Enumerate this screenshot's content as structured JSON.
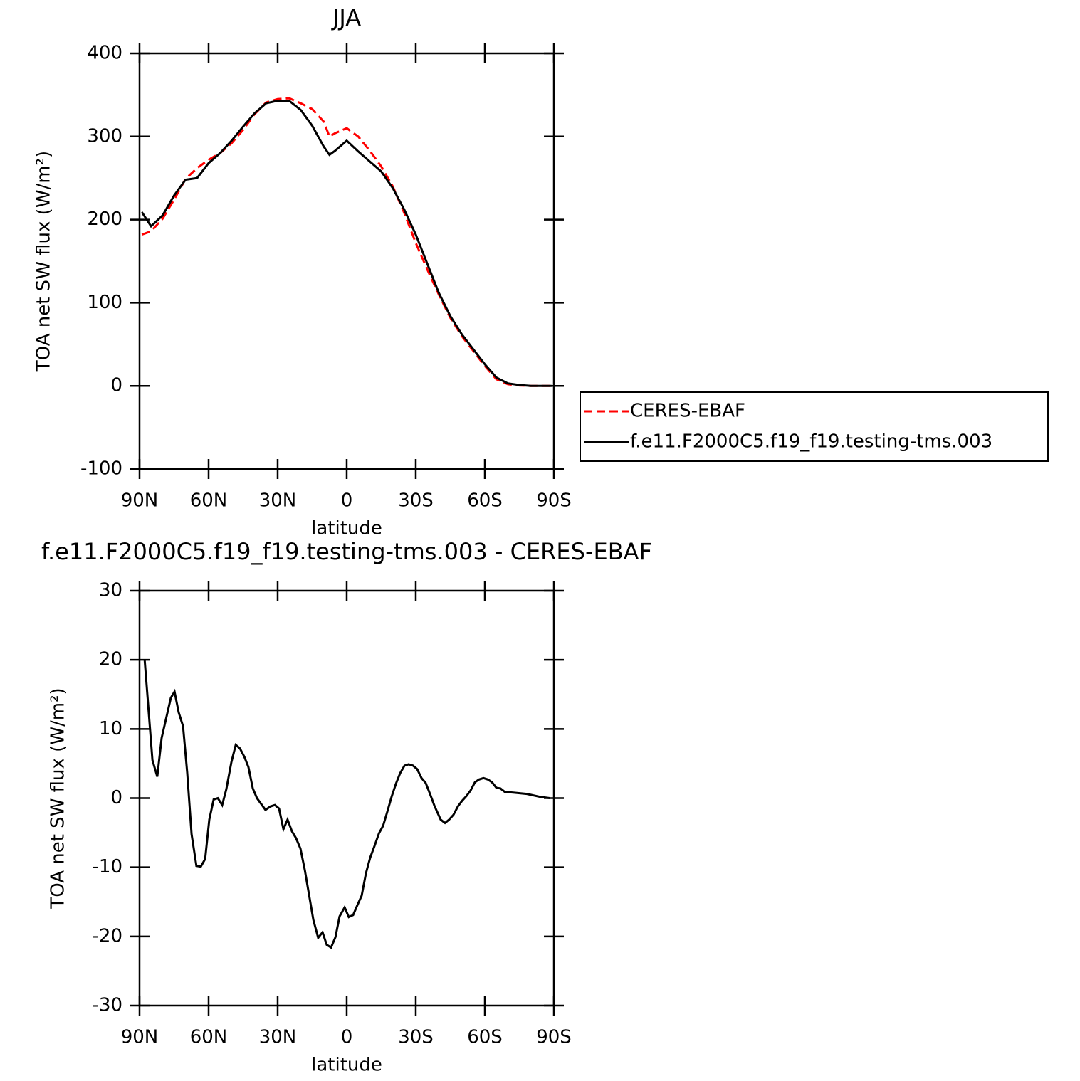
{
  "chart_data": [
    {
      "type": "line",
      "title": "JJA",
      "x_label": "latitude",
      "y_label": "TOA net SW flux (W/m²)",
      "x": [
        89,
        85,
        80,
        75,
        70,
        65,
        60,
        55,
        50,
        45,
        40,
        35,
        30,
        25,
        20,
        15,
        10,
        7.5,
        5,
        0,
        -5,
        -10,
        -15,
        -20,
        -25,
        -30,
        -35,
        -40,
        -45,
        -50,
        -55,
        -60,
        -65,
        -70,
        -75,
        -80,
        -85,
        -89
      ],
      "series": [
        {
          "name": "CERES-EBAF",
          "color": "#ff0000",
          "line_style": "dashed",
          "values": [
            182,
            186,
            201,
            224,
            249,
            262,
            272,
            280,
            292,
            308,
            327,
            341,
            345,
            346,
            340,
            333,
            318,
            300,
            304,
            310,
            300,
            283,
            264,
            240,
            208,
            172,
            140,
            110,
            82,
            60,
            42,
            24,
            8,
            2,
            0.5,
            0,
            0,
            0
          ]
        },
        {
          "name": "f.e11.F2000C5.f19_f19.testing-tms.003",
          "color": "#000000",
          "line_style": "solid",
          "values": [
            209,
            192,
            205,
            229,
            248,
            250,
            268,
            280,
            295,
            312,
            328,
            340,
            343,
            343,
            332,
            313,
            288,
            278,
            283,
            295,
            282,
            270,
            258,
            238,
            212,
            182,
            147,
            112,
            84,
            62,
            44,
            26,
            10,
            3,
            1,
            0,
            0,
            0
          ]
        }
      ],
      "xlim": [
        90,
        -90
      ],
      "xticks": [
        {
          "value": 90,
          "label": "90N"
        },
        {
          "value": 60,
          "label": "60N"
        },
        {
          "value": 30,
          "label": "30N"
        },
        0,
        {
          "value": -30,
          "label": "30S"
        },
        {
          "value": -60,
          "label": "60S"
        },
        {
          "value": -90,
          "label": "90S"
        }
      ],
      "ylim": [
        -100,
        400
      ],
      "yticks": [
        -100,
        0,
        100,
        200,
        300,
        400
      ],
      "legend": "right"
    },
    {
      "type": "line",
      "title": "f.e11.F2000C5.f19_f19.testing-tms.003 - CERES-EBAF",
      "x_label": "latitude",
      "y_label": "TOA net SW flux (W/m²)",
      "x": [
        87.8,
        84.4,
        82.3,
        80.4,
        76.4,
        74.8,
        73,
        71.1,
        69.3,
        67.4,
        65.3,
        63.4,
        61.5,
        59.7,
        57.8,
        56,
        54.1,
        52.3,
        50.1,
        48.2,
        46.4,
        44.5,
        42.7,
        40.8,
        39,
        35.3,
        33.1,
        31.2,
        29.4,
        27.5,
        25.7,
        23.8,
        22,
        20.1,
        18.2,
        16.4,
        14.5,
        12.4,
        10.5,
        8.7,
        6.8,
        4.9,
        3.1,
        0.9,
        -0.9,
        -2.8,
        -4.6,
        -6.5,
        -8.4,
        -10.2,
        -12.1,
        -14,
        -15.8,
        -17.6,
        -19.5,
        -21.4,
        -23.2,
        -25.1,
        -26.9,
        -28.8,
        -30.6,
        -32.5,
        -34.3,
        -36.2,
        -38.1,
        -40.8,
        -42.7,
        -44.5,
        -46.4,
        -48.3,
        -50.1,
        -52,
        -53.8,
        -55.7,
        -57.5,
        -59.4,
        -61.3,
        -63.1,
        -65,
        -66.8,
        -68.7,
        -72.4,
        -78.3,
        -83.8,
        -88.2
      ],
      "series": [
        {
          "color": "#000000",
          "line_style": "solid",
          "values": [
            20.1,
            5.5,
            3.1,
            8.7,
            14.5,
            15.4,
            12.4,
            10.4,
            3.7,
            -5.2,
            -9.8,
            -9.9,
            -8.8,
            -3.1,
            -0.2,
            0,
            -1,
            1.3,
            5.2,
            7.7,
            7.2,
            6,
            4.5,
            1.4,
            0,
            -1.7,
            -1.2,
            -1,
            -1.5,
            -4.5,
            -3.1,
            -4.8,
            -5.8,
            -7.3,
            -10.4,
            -13.9,
            -17.6,
            -20.2,
            -19.4,
            -21.2,
            -21.6,
            -20.1,
            -17.1,
            -15.8,
            -17.2,
            -16.9,
            -15.5,
            -14.1,
            -10.8,
            -8.6,
            -6.9,
            -5.1,
            -4,
            -2,
            0.2,
            2.1,
            3.6,
            4.7,
            4.9,
            4.7,
            4.2,
            2.9,
            2.2,
            0.6,
            -1.1,
            -3.1,
            -3.6,
            -3.1,
            -2.4,
            -1.2,
            -0.4,
            0.3,
            1.1,
            2.3,
            2.7,
            2.9,
            2.7,
            2.3,
            1.5,
            1.4,
            0.9,
            0.8,
            0.6,
            0.2,
            0
          ]
        }
      ],
      "xlim": [
        90,
        -90
      ],
      "xticks": [
        {
          "value": 90,
          "label": "90N"
        },
        {
          "value": 60,
          "label": "60N"
        },
        {
          "value": 30,
          "label": "30N"
        },
        0,
        {
          "value": -30,
          "label": "30S"
        },
        {
          "value": -60,
          "label": "60S"
        },
        {
          "value": -90,
          "label": "90S"
        }
      ],
      "ylim": [
        -30,
        30
      ],
      "yticks": [
        -30,
        -20,
        -10,
        0,
        10,
        20,
        30
      ]
    }
  ]
}
